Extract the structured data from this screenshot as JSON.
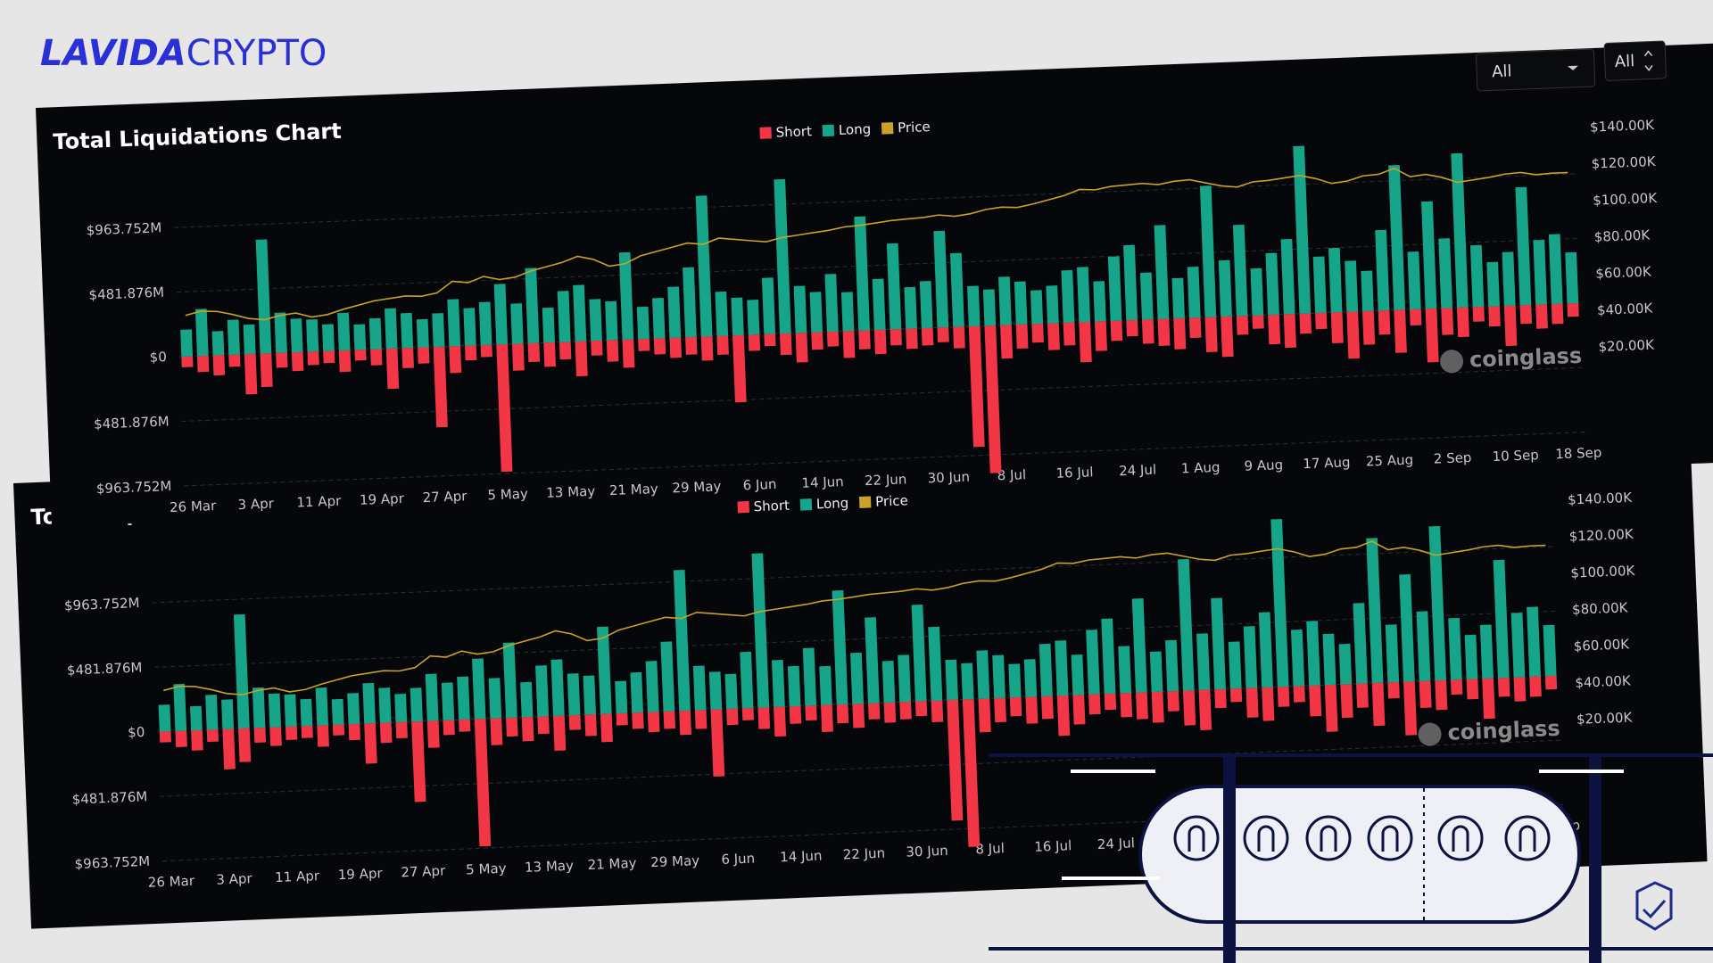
{
  "logo": {
    "bold": "LAVIDA",
    "light": "CRYPTO"
  },
  "controls": [
    "All",
    "All"
  ],
  "chart_data": {
    "type": "bar",
    "title": "Total Liquidations Chart",
    "watermark": "coinglass",
    "categories": [
      "26 Mar",
      null,
      null,
      null,
      "3 Apr",
      null,
      null,
      null,
      "11 Apr",
      null,
      null,
      null,
      "19 Apr",
      null,
      null,
      null,
      "27 Apr",
      null,
      null,
      null,
      "5 May",
      null,
      null,
      null,
      "13 May",
      null,
      null,
      null,
      "21 May",
      null,
      null,
      null,
      "29 May",
      null,
      null,
      null,
      "6 Jun",
      null,
      null,
      null,
      "14 Jun",
      null,
      null,
      null,
      "22 Jun",
      null,
      null,
      null,
      "30 Jun",
      null,
      null,
      null,
      "8 Jul",
      null,
      null,
      null,
      "16 Jul",
      null,
      null,
      null,
      "24 Jul",
      null,
      null,
      null,
      "1 Aug",
      null,
      null,
      null,
      "9 Aug",
      null,
      null,
      null,
      "17 Aug",
      null,
      null,
      null,
      "25 Aug",
      null,
      null,
      null,
      "2 Sep",
      null,
      null,
      null,
      "10 Sep",
      null,
      null,
      null,
      "18 Sep"
    ],
    "series": [
      {
        "name": "Short",
        "color": "#f23645",
        "values": [
          -80,
          -120,
          -150,
          -90,
          -300,
          -250,
          -110,
          -140,
          -100,
          -90,
          -160,
          -80,
          -120,
          -300,
          -150,
          -120,
          -600,
          -200,
          -110,
          -90,
          -950,
          -200,
          -140,
          -180,
          -130,
          -260,
          -110,
          -160,
          -210,
          -90,
          -120,
          -150,
          -130,
          -180,
          -140,
          -500,
          -120,
          -90,
          -160,
          -220,
          -130,
          -110,
          -200,
          -140,
          -180,
          -120,
          -150,
          -130,
          -110,
          -160,
          -900,
          -1100,
          -250,
          -180,
          -140,
          -200,
          -170,
          -300,
          -220,
          -150,
          -120,
          -180,
          -200,
          -230,
          -150,
          -260,
          -300,
          -140,
          -100,
          -220,
          -250,
          -150,
          -120,
          -230,
          -350,
          -250,
          -180,
          -320,
          -120,
          -400,
          -200,
          -220,
          -110,
          -150,
          -300,
          -140,
          -180,
          -150,
          -100
        ]
      },
      {
        "name": "Long",
        "color": "#17a589",
        "values": [
          200,
          350,
          180,
          260,
          220,
          850,
          300,
          250,
          240,
          200,
          280,
          190,
          230,
          300,
          260,
          210,
          250,
          350,
          280,
          320,
          450,
          300,
          560,
          260,
          380,
          420,
          310,
          290,
          650,
          240,
          300,
          380,
          520,
          1050,
          330,
          280,
          260,
          420,
          1150,
          350,
          300,
          430,
          290,
          850,
          380,
          640,
          310,
          350,
          720,
          550,
          300,
          270,
          360,
          320,
          250,
          280,
          390,
          410,
          300,
          480,
          560,
          350,
          700,
          300,
          380,
          980,
          420,
          680,
          350,
          460,
          560,
          1250,
          420,
          480,
          380,
          300,
          600,
          1080,
          430,
          800,
          520,
          1150,
          460,
          330,
          400,
          880,
          480,
          520,
          380
        ]
      },
      {
        "name": "Price",
        "color": "#c9a227",
        "axis": "y2",
        "values": [
          67000,
          69000,
          68500,
          66500,
          64000,
          63000,
          65000,
          66000,
          63500,
          64500,
          67000,
          69000,
          71000,
          72000,
          73000,
          72500,
          74000,
          80000,
          79000,
          82000,
          80000,
          81000,
          84000,
          86000,
          88000,
          91000,
          89000,
          85000,
          86000,
          90000,
          92000,
          94000,
          96000,
          95000,
          98000,
          97000,
          96000,
          95000,
          97000,
          98000,
          99000,
          100000,
          101500,
          102000,
          103000,
          104000,
          104500,
          105000,
          106000,
          105000,
          106000,
          108000,
          109000,
          108500,
          110000,
          112000,
          114000,
          117000,
          116500,
          118000,
          118500,
          119000,
          118000,
          119500,
          120000,
          118000,
          116000,
          115000,
          117500,
          118000,
          119000,
          120000,
          118000,
          115000,
          116000,
          118500,
          119000,
          122000,
          117000,
          118000,
          116000,
          113000,
          114000,
          115000,
          116500,
          117000,
          115500,
          116000,
          116000
        ]
      }
    ],
    "ylim": [
      -963.752,
      1330
    ],
    "yticks": [
      {
        "value": 963.752,
        "label": "$963.752M"
      },
      {
        "value": 481.876,
        "label": "$481.876M"
      },
      {
        "value": 0,
        "label": "$0"
      },
      {
        "value": -481.876,
        "label": "$481.876M"
      },
      {
        "value": -963.752,
        "label": "$963.752M"
      }
    ],
    "y2lim": [
      -26000,
      142000
    ],
    "y2ticks": [
      {
        "value": 20000,
        "label": "$20.00K"
      },
      {
        "value": 40000,
        "label": "$40.00K"
      },
      {
        "value": 60000,
        "label": "$60.00K"
      },
      {
        "value": 80000,
        "label": "$80.00K"
      },
      {
        "value": 100000,
        "label": "$100.00K"
      },
      {
        "value": 120000,
        "label": "$120.00K"
      },
      {
        "value": 140000,
        "label": "$140.00K"
      }
    ],
    "grid": true,
    "legend": "top"
  }
}
